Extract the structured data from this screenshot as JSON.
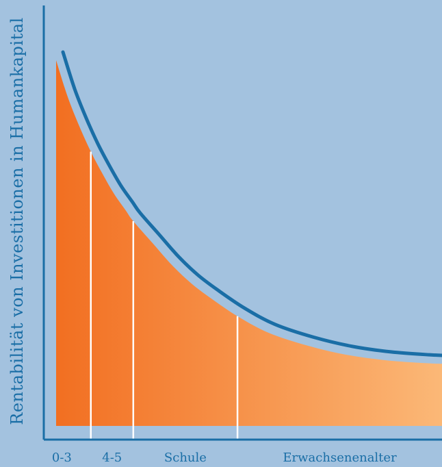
{
  "chart_data": {
    "type": "area",
    "ylabel": "Rentabilität von Investitionen in Humankapital",
    "xlabel": "",
    "categories": [
      "0-3",
      "4-5",
      "Schule",
      "Erwachsenenalter"
    ],
    "category_boundaries": [
      0.09,
      0.2,
      0.47
    ],
    "series": [
      {
        "values": [
          [
            0.0,
            1.0
          ],
          [
            0.03,
            0.9
          ],
          [
            0.06,
            0.82
          ],
          [
            0.09,
            0.75
          ],
          [
            0.12,
            0.69
          ],
          [
            0.15,
            0.635
          ],
          [
            0.18,
            0.59
          ],
          [
            0.2,
            0.56
          ],
          [
            0.25,
            0.5
          ],
          [
            0.3,
            0.44
          ],
          [
            0.35,
            0.39
          ],
          [
            0.4,
            0.35
          ],
          [
            0.47,
            0.3
          ],
          [
            0.55,
            0.255
          ],
          [
            0.65,
            0.22
          ],
          [
            0.75,
            0.195
          ],
          [
            0.85,
            0.18
          ],
          [
            0.95,
            0.172
          ],
          [
            1.0,
            0.17
          ]
        ]
      }
    ],
    "colors": {
      "background": "#a3c2df",
      "axis": "#1a6ea6",
      "curve": "#1a6ea6",
      "fill_start": "#f26f21",
      "fill_end": "#fbb877",
      "divider": "#ffffff"
    },
    "grid": false,
    "legend": "none"
  }
}
